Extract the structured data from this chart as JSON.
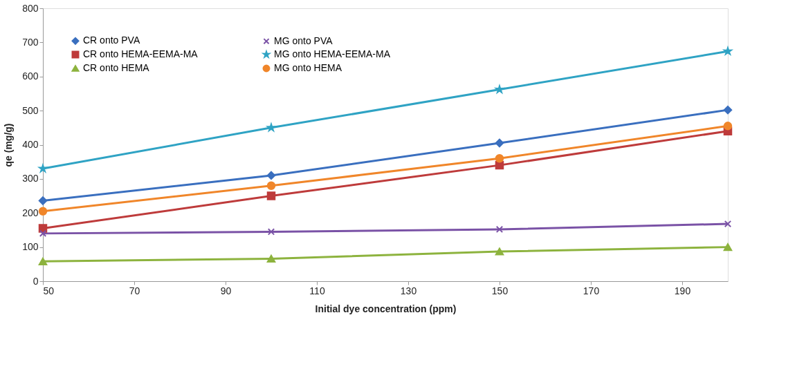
{
  "chart_data": {
    "type": "line",
    "xlabel": "Initial dye concentration (ppm)",
    "ylabel": "qe (mg/g)",
    "x": [
      50,
      100,
      150,
      200
    ],
    "xlim": [
      50,
      200
    ],
    "xticks": [
      50,
      70,
      90,
      110,
      130,
      150,
      170,
      190
    ],
    "ylim": [
      0,
      800
    ],
    "yticks": [
      0,
      100,
      200,
      300,
      400,
      500,
      600,
      700,
      800
    ],
    "grid": false,
    "legend": "top left",
    "series": [
      {
        "name": "CR onto PVA",
        "color": "#3a6fbf",
        "marker": "diamond",
        "values": [
          236,
          310,
          405,
          502
        ]
      },
      {
        "name": "CR onto HEMA-EEMA-MA",
        "color": "#be3b3b",
        "marker": "square",
        "values": [
          155,
          250,
          340,
          440
        ]
      },
      {
        "name": "CR onto HEMA",
        "color": "#8db33e",
        "marker": "triangle",
        "values": [
          58,
          66,
          87,
          100
        ]
      },
      {
        "name": "MG onto PVA",
        "color": "#7a52a6",
        "marker": "cross",
        "values": [
          140,
          145,
          152,
          168
        ]
      },
      {
        "name": "MG onto HEMA-EEMA-MA",
        "color": "#2fa3c4",
        "marker": "star",
        "values": [
          330,
          450,
          562,
          674
        ]
      },
      {
        "name": "MG onto HEMA",
        "color": "#f0862a",
        "marker": "circle",
        "values": [
          205,
          280,
          360,
          455
        ]
      }
    ]
  }
}
